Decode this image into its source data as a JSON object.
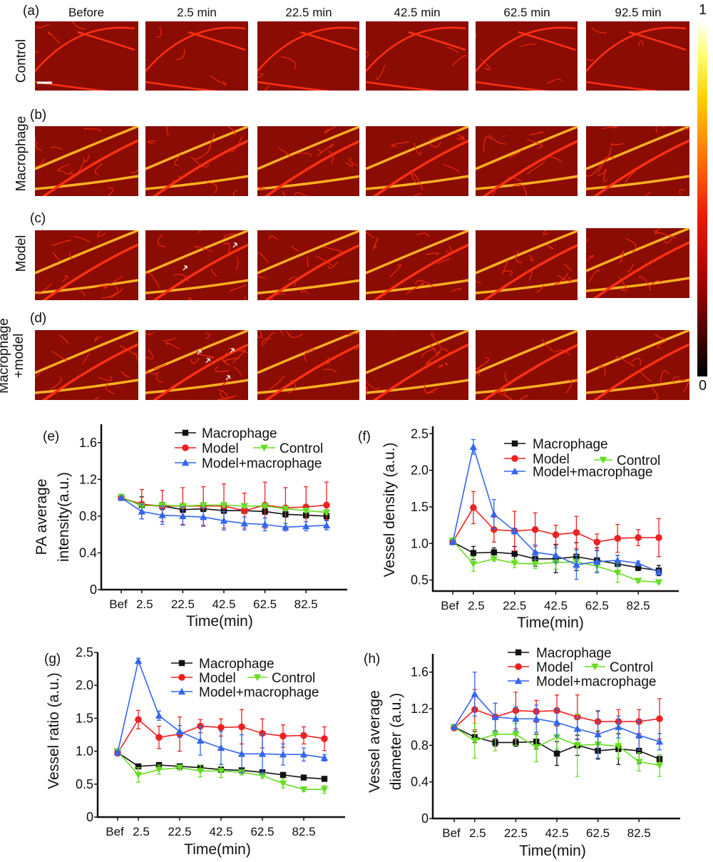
{
  "panel_labels": {
    "a": "(a)",
    "b": "(b)",
    "c": "(c)",
    "d": "(d)"
  },
  "column_headers": [
    "Before",
    "2.5 min",
    "22.5 min",
    "42.5 min",
    "62.5 min",
    "92.5 min"
  ],
  "row_labels": {
    "control": "Control",
    "macrophage": "Macrophage",
    "model": "Model",
    "macrophage_model_1": "Macrophage",
    "macrophage_model_2": "+model"
  },
  "colorbar": {
    "max_label": "1",
    "min_label": "0",
    "colormap": "hot"
  },
  "colors": {
    "Macrophage": "#111111",
    "Model": "#ee2222",
    "Control": "#66dd22",
    "Model+macrophage": "#3366ee"
  },
  "chart_data": [
    {
      "panel": "(e)",
      "type": "line",
      "ylabel": [
        "PA average",
        "intensity(a.u.)"
      ],
      "xlabel": "Time(min)",
      "x": [
        "Bef",
        "2.5",
        "12.5",
        "22.5",
        "32.5",
        "42.5",
        "52.5",
        "62.5",
        "72.5",
        "82.5",
        "92.5"
      ],
      "xtick_labels": [
        "Bef",
        "2.5",
        "22.5",
        "42.5",
        "62.5",
        "82.5"
      ],
      "yticks": [
        0,
        0.4,
        0.8,
        1.2,
        1.6
      ],
      "ytick_labels": [
        "0",
        "0.4",
        "0.8",
        "1.2",
        "1.6"
      ],
      "ylim": [
        0,
        1.8
      ],
      "legend_placement": "top-right",
      "series": [
        {
          "name": "Macrophage",
          "marker": "square",
          "values": [
            1.0,
            0.92,
            0.91,
            0.87,
            0.88,
            0.86,
            0.86,
            0.85,
            0.82,
            0.81,
            0.8
          ],
          "err": [
            0,
            0.09,
            0.04,
            0.03,
            0.03,
            0.03,
            0.03,
            0.03,
            0.03,
            0.03,
            0.04
          ]
        },
        {
          "name": "Model",
          "marker": "circle",
          "values": [
            1.0,
            0.93,
            0.91,
            0.91,
            0.91,
            0.91,
            0.86,
            0.92,
            0.89,
            0.9,
            0.92
          ],
          "err": [
            0,
            0.16,
            0.17,
            0.2,
            0.21,
            0.24,
            0.19,
            0.25,
            0.22,
            0.22,
            0.25
          ]
        },
        {
          "name": "Control",
          "marker": "triangle-down",
          "values": [
            1.01,
            0.91,
            0.92,
            0.91,
            0.92,
            0.92,
            0.91,
            0.91,
            0.88,
            0.86,
            0.84
          ],
          "err": [
            0.01,
            0.02,
            0.02,
            0.02,
            0.02,
            0.02,
            0.02,
            0.02,
            0.02,
            0.02,
            0.02
          ]
        },
        {
          "name": "Model+macrophage",
          "marker": "triangle-up",
          "values": [
            1.0,
            0.85,
            0.81,
            0.8,
            0.79,
            0.75,
            0.72,
            0.71,
            0.68,
            0.69,
            0.7
          ],
          "err": [
            0.01,
            0.08,
            0.1,
            0.1,
            0.1,
            0.1,
            0.07,
            0.07,
            0.04,
            0.05,
            0.05
          ]
        }
      ]
    },
    {
      "panel": "(f)",
      "type": "line",
      "ylabel": [
        "Vessel density (a.u.)"
      ],
      "xlabel": "Time(min)",
      "x": [
        "Bef",
        "2.5",
        "12.5",
        "22.5",
        "32.5",
        "42.5",
        "52.5",
        "62.5",
        "72.5",
        "82.5",
        "92.5"
      ],
      "xtick_labels": [
        "Bef",
        "2.5",
        "22.5",
        "42.5",
        "62.5",
        "82.5"
      ],
      "yticks": [
        0.5,
        1.0,
        1.5,
        2.0,
        2.5
      ],
      "ytick_labels": [
        "0.5",
        "1.0",
        "1.5",
        "2.0",
        "2.5"
      ],
      "ylim": [
        0.35,
        2.6
      ],
      "legend_placement": "top-right",
      "series": [
        {
          "name": "Macrophage",
          "marker": "square",
          "values": [
            1.02,
            0.87,
            0.88,
            0.86,
            0.79,
            0.79,
            0.82,
            0.77,
            0.72,
            0.67,
            0.63
          ],
          "err": [
            0.02,
            0.09,
            0.06,
            0.1,
            0.1,
            0.19,
            0.19,
            0.17,
            0.12,
            0.04,
            0.07
          ]
        },
        {
          "name": "Model",
          "marker": "circle",
          "values": [
            1.02,
            1.49,
            1.19,
            1.17,
            1.19,
            1.12,
            1.15,
            1.02,
            1.07,
            1.08,
            1.08
          ],
          "err": [
            0.02,
            0.22,
            0.17,
            0.27,
            0.23,
            0.13,
            0.22,
            0.11,
            0.19,
            0.11,
            0.26
          ]
        },
        {
          "name": "Control",
          "marker": "triangle-down",
          "values": [
            1.04,
            0.72,
            0.79,
            0.73,
            0.72,
            0.74,
            0.75,
            0.69,
            0.6,
            0.49,
            0.47
          ],
          "err": [
            0.02,
            0.1,
            0.03,
            0.06,
            0.06,
            0.09,
            0.09,
            0.07,
            0.13,
            0.02,
            0.02
          ]
        },
        {
          "name": "Model+macrophage",
          "marker": "triangle-up",
          "values": [
            1.02,
            2.32,
            1.4,
            1.17,
            0.88,
            0.84,
            0.71,
            0.75,
            0.77,
            0.73,
            0.61
          ],
          "err": [
            0.02,
            0.1,
            0.2,
            0.04,
            0.1,
            0.1,
            0.2,
            0.15,
            0.07,
            0.03,
            0.03
          ]
        }
      ]
    },
    {
      "panel": "(g)",
      "type": "line",
      "ylabel": [
        "Vessel ratio (a.u.)"
      ],
      "xlabel": "Time(min)",
      "x": [
        "Bef",
        "2.5",
        "12.5",
        "22.5",
        "32.5",
        "42.5",
        "52.5",
        "62.5",
        "72.5",
        "82.5",
        "92.5"
      ],
      "xtick_labels": [
        "Bef",
        "2.5",
        "22.5",
        "42.5",
        "62.5",
        "82.5"
      ],
      "yticks": [
        0,
        0.5,
        1.0,
        1.5,
        2.0,
        2.5
      ],
      "ytick_labels": [
        "0",
        "0.5",
        "1.0",
        "1.5",
        "2.0",
        "2.5"
      ],
      "ylim": [
        0,
        2.5
      ],
      "legend_placement": "top-right",
      "series": [
        {
          "name": "Macrophage",
          "marker": "square",
          "values": [
            0.98,
            0.77,
            0.79,
            0.77,
            0.75,
            0.72,
            0.71,
            0.68,
            0.64,
            0.6,
            0.58
          ],
          "err": [
            0.02,
            0.02,
            0.02,
            0.02,
            0.02,
            0.02,
            0.02,
            0.02,
            0.02,
            0.02,
            0.02
          ]
        },
        {
          "name": "Model",
          "marker": "circle",
          "values": [
            0.97,
            1.48,
            1.21,
            1.26,
            1.38,
            1.36,
            1.37,
            1.27,
            1.23,
            1.24,
            1.19
          ],
          "err": [
            0.02,
            0.14,
            0.17,
            0.26,
            0.1,
            0.13,
            0.26,
            0.22,
            0.17,
            0.13,
            0.18
          ]
        },
        {
          "name": "Control",
          "marker": "triangle-down",
          "values": [
            1.0,
            0.64,
            0.72,
            0.75,
            0.7,
            0.7,
            0.68,
            0.63,
            0.51,
            0.42,
            0.42
          ],
          "err": [
            0.03,
            0.11,
            0.07,
            0.04,
            0.09,
            0.1,
            0.04,
            0.04,
            0.07,
            0.03,
            0.06
          ]
        },
        {
          "name": "Model+macrophage",
          "marker": "triangle-up",
          "values": [
            0.98,
            2.37,
            1.54,
            1.3,
            1.16,
            1.05,
            0.96,
            0.96,
            0.95,
            0.95,
            0.9
          ],
          "err": [
            0.02,
            0.04,
            0.07,
            0.09,
            0.22,
            0.25,
            0.29,
            0.3,
            0.16,
            0.1,
            0.05
          ]
        }
      ]
    },
    {
      "panel": "(h)",
      "type": "line",
      "ylabel": [
        "Vessel average",
        "diameter (a.u.)"
      ],
      "xlabel": "Time(min)",
      "x": [
        "Bef",
        "2.5",
        "12.5",
        "22.5",
        "32.5",
        "42.5",
        "52.5",
        "62.5",
        "72.5",
        "82.5",
        "92.5"
      ],
      "xtick_labels": [
        "Bef",
        "2.5",
        "22.5",
        "42.5",
        "62.5",
        "82.5"
      ],
      "yticks": [
        0,
        0.4,
        0.8,
        1.2,
        1.6
      ],
      "ytick_labels": [
        "0",
        "0.4",
        "0.8",
        "1.2",
        "1.6"
      ],
      "ylim": [
        0,
        1.8
      ],
      "legend_placement": "top-right",
      "series": [
        {
          "name": "Macrophage",
          "marker": "square",
          "values": [
            1.0,
            0.89,
            0.83,
            0.83,
            0.84,
            0.71,
            0.8,
            0.74,
            0.76,
            0.74,
            0.65
          ],
          "err": [
            0.01,
            0.06,
            0.04,
            0.04,
            0.08,
            0.13,
            0.11,
            0.09,
            0.17,
            0.14,
            0.03
          ]
        },
        {
          "name": "Model",
          "marker": "circle",
          "values": [
            0.99,
            1.19,
            1.11,
            1.18,
            1.17,
            1.18,
            1.11,
            1.06,
            1.06,
            1.06,
            1.09
          ],
          "err": [
            0.01,
            0.22,
            0.15,
            0.2,
            0.12,
            0.17,
            0.24,
            0.11,
            0.13,
            0.13,
            0.22
          ]
        },
        {
          "name": "Control",
          "marker": "triangle-down",
          "values": [
            1.0,
            0.85,
            0.92,
            0.92,
            0.78,
            0.89,
            0.8,
            0.81,
            0.79,
            0.62,
            0.58
          ],
          "err": [
            0.01,
            0.19,
            0.18,
            0.12,
            0.16,
            0.13,
            0.34,
            0.15,
            0.13,
            0.1,
            0.12
          ]
        },
        {
          "name": "Model+macrophage",
          "marker": "triangle-up",
          "values": [
            1.0,
            1.36,
            1.11,
            1.09,
            1.09,
            1.05,
            0.98,
            0.92,
            1.0,
            0.91,
            0.84
          ],
          "err": [
            0.01,
            0.24,
            0.15,
            0.13,
            0.15,
            0.15,
            0.12,
            0.26,
            0.12,
            0.16,
            0.09
          ]
        }
      ]
    }
  ]
}
